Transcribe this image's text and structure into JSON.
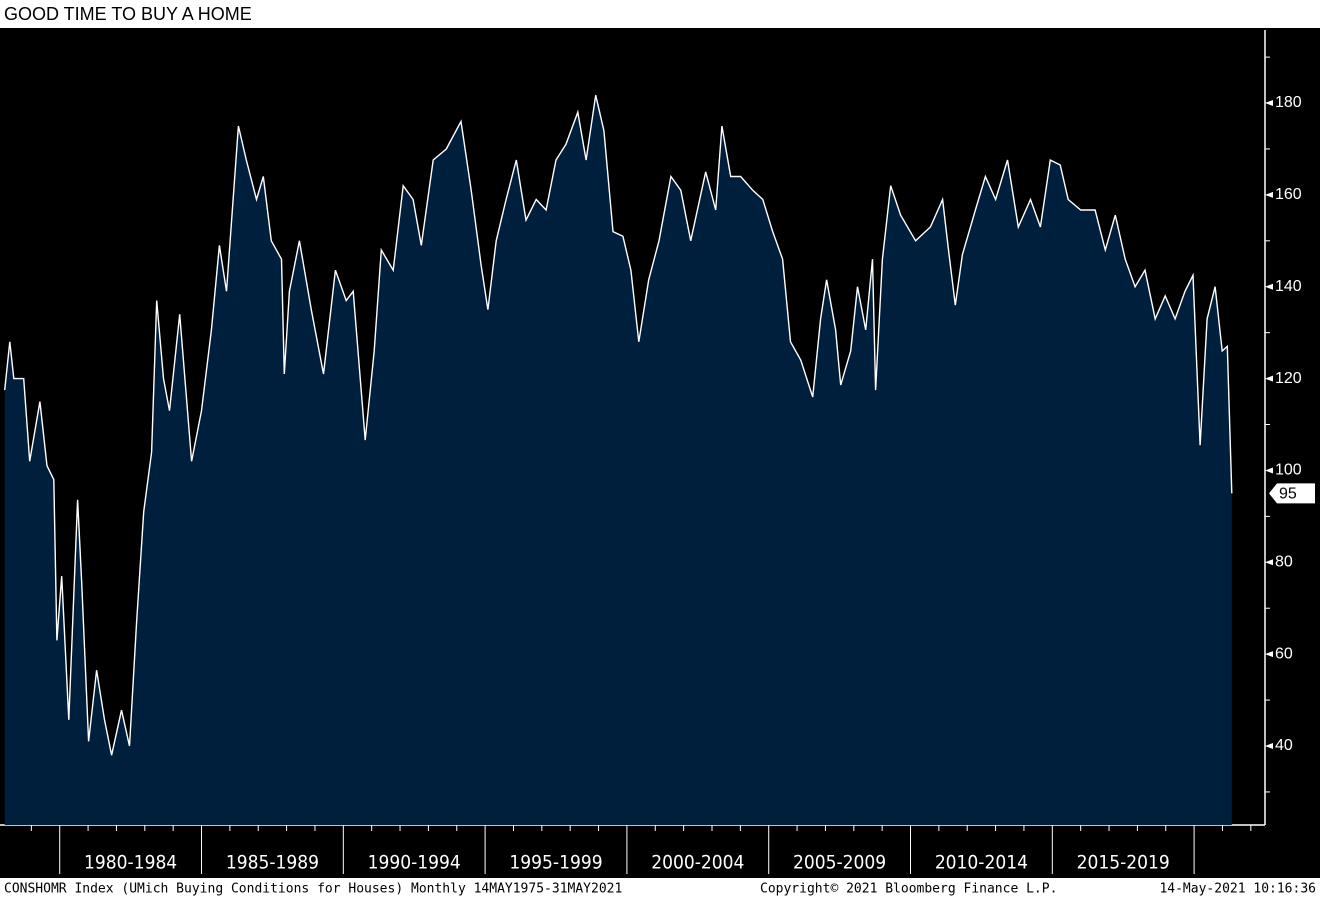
{
  "chart_data": {
    "type": "area",
    "title": "GOOD TIME TO BUY A HOME",
    "footer_left": "CONSHOMR Index (UMich Buying Conditions for Houses)  Monthly 14MAY1975-31MAY2021",
    "footer_center": "Copyright© 2021 Bloomberg Finance L.P.",
    "footer_right": "14-May-2021 10:16:36",
    "x": [
      1978.06,
      1978.24,
      1978.38,
      1978.73,
      1978.94,
      1979.3,
      1979.55,
      1979.79,
      1979.9,
      1980.07,
      1980.32,
      1980.63,
      1980.77,
      1981.02,
      1981.3,
      1981.58,
      1981.83,
      1982.18,
      1982.46,
      1982.71,
      1982.96,
      1983.24,
      1983.42,
      1983.66,
      1983.87,
      1984.23,
      1984.65,
      1985.0,
      1985.35,
      1985.63,
      1985.88,
      1986.3,
      1986.58,
      1986.94,
      1987.18,
      1987.46,
      1987.82,
      1987.92,
      1988.1,
      1988.45,
      1988.87,
      1989.3,
      1989.72,
      1990.1,
      1990.35,
      1990.77,
      1991.09,
      1991.34,
      1991.76,
      1992.11,
      1992.46,
      1992.75,
      1993.17,
      1993.63,
      1994.15,
      1994.51,
      1994.86,
      1995.1,
      1995.39,
      1995.74,
      1996.1,
      1996.44,
      1996.8,
      1997.15,
      1997.5,
      1997.85,
      1998.27,
      1998.56,
      1998.9,
      1999.19,
      1999.51,
      1999.86,
      2000.14,
      2000.42,
      2000.77,
      2001.13,
      2001.55,
      2001.9,
      2002.25,
      2002.78,
      2003.13,
      2003.35,
      2003.66,
      2004.01,
      2004.44,
      2004.79,
      2005.14,
      2005.49,
      2005.77,
      2006.13,
      2006.55,
      2006.83,
      2007.04,
      2007.36,
      2007.54,
      2007.89,
      2008.13,
      2008.42,
      2008.66,
      2008.77,
      2009.01,
      2009.3,
      2009.65,
      2010.18,
      2010.7,
      2011.13,
      2011.34,
      2011.58,
      2011.83,
      2012.29,
      2012.64,
      2013.0,
      2013.42,
      2013.8,
      2014.23,
      2014.58,
      2014.93,
      2015.28,
      2015.56,
      2016.0,
      2016.51,
      2016.87,
      2017.22,
      2017.57,
      2017.92,
      2018.27,
      2018.63,
      2018.98,
      2019.33,
      2019.68,
      2019.96,
      2020.21,
      2020.46,
      2020.74,
      2020.99,
      2021.17,
      2021.33
    ],
    "series": [
      {
        "name": "CONSHOMR Index",
        "color": "#ffffff",
        "fill": "#001f3d",
        "values": [
          117.5,
          128,
          120,
          120,
          102,
          115,
          101,
          98,
          63,
          77,
          45.7,
          93.6,
          76,
          41,
          56.5,
          45.7,
          38,
          47.8,
          40,
          67,
          91,
          104,
          137,
          120,
          113,
          134,
          102,
          113,
          130.6,
          149,
          139,
          175,
          167.6,
          159,
          164,
          150,
          146,
          121,
          139,
          150,
          135,
          121,
          143.6,
          137,
          139,
          106.6,
          126,
          148,
          143.6,
          162,
          159,
          149,
          167.6,
          170,
          176,
          161,
          144.7,
          135,
          150,
          159,
          167.6,
          154.5,
          159,
          156.7,
          167.6,
          171,
          178,
          167.6,
          181.7,
          174,
          152,
          151,
          143.6,
          128,
          141.5,
          150,
          164,
          161,
          150,
          165,
          156.7,
          175,
          164,
          164,
          161,
          159,
          152,
          146,
          128,
          124,
          116,
          133,
          141.5,
          130.6,
          118.6,
          126,
          140,
          130.6,
          146,
          117.5,
          146,
          162,
          155.6,
          150,
          153,
          159,
          148,
          136,
          147,
          156.7,
          164,
          159,
          167.6,
          153,
          159,
          153,
          167.6,
          166.5,
          159,
          156.7,
          156.7,
          148,
          155.6,
          146,
          140,
          143.6,
          133,
          138,
          133,
          139,
          142.5,
          105.5,
          133,
          140,
          126,
          127,
          95
        ]
      }
    ],
    "xlim": [
      1978.0,
      2022.5
    ],
    "xticks": [
      1980,
      1985,
      1990,
      1995,
      2000,
      2005,
      2010,
      2015,
      2020
    ],
    "xtick_labels": [
      "1980-1984",
      "1985-1989",
      "1990-1994",
      "1995-1999",
      "2000-2004",
      "2005-2009",
      "2010-2014",
      "2015-2019"
    ],
    "xminorticks": [
      1979,
      1981,
      1982,
      1983,
      1984,
      1986,
      1987,
      1988,
      1989,
      1991,
      1992,
      1993,
      1994,
      1996,
      1997,
      1998,
      1999,
      2001,
      2002,
      2003,
      2004,
      2006,
      2007,
      2008,
      2009,
      2011,
      2012,
      2013,
      2014,
      2016,
      2017,
      2018,
      2019,
      2021,
      2022
    ],
    "ylim": [
      22.8,
      195.9
    ],
    "yticks": [
      40,
      60,
      80,
      100,
      120,
      140,
      160,
      180
    ],
    "yminorticks": [
      30,
      50,
      70,
      90,
      110,
      130,
      150,
      170,
      190
    ]
  }
}
